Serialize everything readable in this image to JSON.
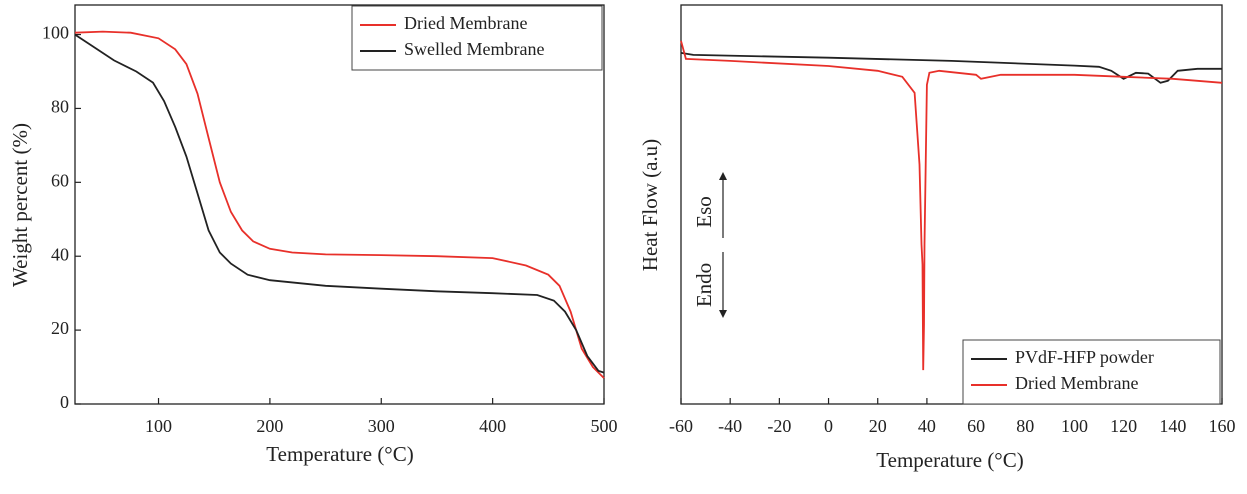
{
  "chart_data": [
    {
      "type": "line",
      "xlabel": "Temperature (°C)",
      "ylabel": "Weight percent (%)",
      "xlim": [
        25,
        500
      ],
      "ylim": [
        0,
        108
      ],
      "xticks": [
        100,
        200,
        300,
        400,
        500
      ],
      "yticks": [
        0,
        20,
        40,
        60,
        80,
        100
      ],
      "legend": "upper right",
      "series": [
        {
          "name": "Dried Membrane",
          "color": "#e8302a",
          "x": [
            25,
            50,
            75,
            100,
            115,
            125,
            135,
            145,
            155,
            165,
            175,
            185,
            200,
            220,
            250,
            300,
            350,
            400,
            430,
            450,
            460,
            470,
            480,
            490,
            500
          ],
          "values": [
            100.5,
            100.8,
            100.5,
            99,
            96,
            92,
            84,
            72,
            60,
            52,
            47,
            44,
            42,
            41,
            40.5,
            40.3,
            40,
            39.5,
            37.5,
            35,
            32,
            25,
            15,
            10,
            7
          ]
        },
        {
          "name": "Swelled Membrane",
          "color": "#222222",
          "x": [
            25,
            40,
            60,
            80,
            95,
            105,
            115,
            125,
            135,
            145,
            155,
            165,
            180,
            200,
            250,
            300,
            350,
            400,
            440,
            455,
            465,
            475,
            485,
            495,
            500
          ],
          "values": [
            100,
            97,
            93,
            90,
            87,
            82,
            75,
            67,
            57,
            47,
            41,
            38,
            35,
            33.5,
            32,
            31.2,
            30.5,
            30,
            29.5,
            28,
            25,
            20,
            13,
            9,
            8.5
          ]
        }
      ]
    },
    {
      "type": "line",
      "xlabel": "Temperature (°C)",
      "ylabel": "Heat Flow (a.u)",
      "xlim": [
        -60,
        160
      ],
      "ylim": [
        0,
        100
      ],
      "xticks": [
        -60,
        -40,
        -20,
        0,
        20,
        40,
        60,
        80,
        100,
        120,
        140,
        160
      ],
      "legend": "lower right",
      "annotations": [
        "Endo",
        "Eso"
      ],
      "series": [
        {
          "name": "PVdF-HFP powder",
          "color": "#222222",
          "x": [
            -60,
            -55,
            0,
            50,
            100,
            110,
            115,
            120,
            125,
            130,
            135,
            138,
            142,
            150,
            160
          ],
          "values": [
            88,
            87.5,
            86.8,
            86,
            84.8,
            84.5,
            83.5,
            81.5,
            83,
            82.8,
            80.5,
            81,
            83.5,
            84,
            84
          ]
        },
        {
          "name": "Dried Membrane",
          "color": "#e8302a",
          "x": [
            -60,
            -58,
            -40,
            0,
            20,
            30,
            35,
            37,
            37.8,
            38.2,
            38.5,
            38.8,
            39,
            39.5,
            40,
            41,
            45,
            60,
            62,
            70,
            100,
            120,
            140,
            160
          ],
          "values": [
            91,
            86.5,
            86,
            84.7,
            83.5,
            82,
            78,
            60,
            40,
            35,
            8.5,
            20,
            40,
            60,
            80,
            83,
            83.5,
            82.5,
            81.5,
            82.5,
            82.5,
            82,
            81.5,
            80.5
          ]
        }
      ]
    }
  ]
}
